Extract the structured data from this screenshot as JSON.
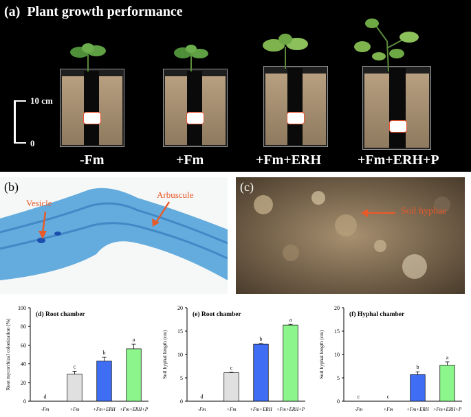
{
  "panel_a": {
    "label": "(a)",
    "title": "Plant growth performance",
    "scale": {
      "top": "10 cm",
      "bottom": "0"
    },
    "treatments": [
      "-Fm",
      "+Fm",
      "+Fm+ERH",
      "+Fm+ERH+P"
    ]
  },
  "panel_b": {
    "label": "(b)",
    "annotations": {
      "vesicle": "Vesicle",
      "arbuscule": "Arbuscule"
    }
  },
  "panel_c": {
    "label": "(c)",
    "annotations": {
      "hyphae": "Soil hyphae"
    }
  },
  "colors": {
    "bar_fm": "#e0e0e0",
    "bar_erh": "#3f6ef5",
    "bar_erhp": "#8cf58c",
    "arrow": "#e85a2a"
  },
  "chart_data": [
    {
      "type": "bar",
      "title": "(d) Root chamber",
      "ylabel": "Root mycorrhizal colonization (%)",
      "categories": [
        "-Fm",
        "+Fm",
        "+Fm+ERH",
        "+Fm+ERH+P"
      ],
      "values": [
        0,
        29,
        43,
        56
      ],
      "errors": [
        0,
        3,
        4,
        5
      ],
      "letters": [
        "d",
        "c",
        "b",
        "a"
      ],
      "ylim": [
        0,
        100
      ],
      "yticks": [
        "0",
        "20",
        "40",
        "60",
        "80",
        "100"
      ]
    },
    {
      "type": "bar",
      "title": "(e) Root chamber",
      "ylabel": "Soil hyphal length (cm)",
      "categories": [
        "-Fm",
        "+Fm",
        "+Fm+ERH",
        "+Fm+ERH+P"
      ],
      "values": [
        0,
        6.1,
        12.2,
        16.3
      ],
      "errors": [
        0,
        0.1,
        0.15,
        0.15
      ],
      "letters": [
        "d",
        "c",
        "b",
        "a"
      ],
      "ylim": [
        0,
        20
      ],
      "yticks": [
        "0",
        "5",
        "10",
        "15",
        "20"
      ]
    },
    {
      "type": "bar",
      "title": "(f) Hyphal chamber",
      "ylabel": "Soil hyphal length (cm)",
      "categories": [
        "-Fm",
        "+Fm",
        "+Fm+ERH",
        "+Fm+ERH+P"
      ],
      "values": [
        0,
        0,
        5.7,
        7.7
      ],
      "errors": [
        0,
        0,
        0.6,
        0.7
      ],
      "letters": [
        "c",
        "c",
        "b",
        "a"
      ],
      "ylim": [
        0,
        20
      ],
      "yticks": [
        "0",
        "5",
        "10",
        "15",
        "20"
      ]
    }
  ]
}
